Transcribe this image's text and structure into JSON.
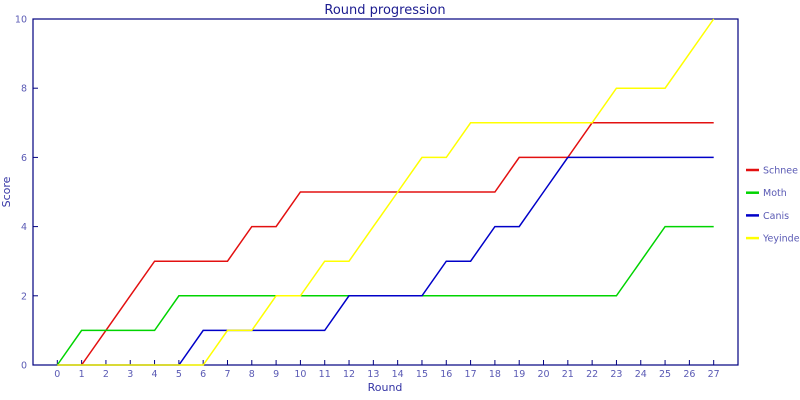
{
  "chart_data": {
    "type": "line",
    "title": "Round progression",
    "xlabel": "Round",
    "ylabel": "Score",
    "xlim": [
      -1,
      28
    ],
    "ylim": [
      0,
      10
    ],
    "x_ticks": [
      0,
      1,
      2,
      3,
      4,
      5,
      6,
      7,
      8,
      9,
      10,
      11,
      12,
      13,
      14,
      15,
      16,
      17,
      18,
      19,
      20,
      21,
      22,
      23,
      24,
      25,
      26,
      27
    ],
    "y_ticks": [
      0,
      2,
      4,
      6,
      8,
      10
    ],
    "grid": false,
    "legend_position": "right-outside",
    "x": [
      0,
      1,
      2,
      3,
      4,
      5,
      6,
      7,
      8,
      9,
      10,
      11,
      12,
      13,
      14,
      15,
      16,
      17,
      18,
      19,
      20,
      21,
      22,
      23,
      24,
      25,
      26,
      27
    ],
    "series": [
      {
        "name": "Schnee",
        "color": "#e31010",
        "values": [
          null,
          0,
          1,
          2,
          3,
          3,
          3,
          3,
          4,
          4,
          5,
          5,
          5,
          5,
          5,
          5,
          5,
          5,
          5,
          6,
          6,
          6,
          7,
          7,
          7,
          7,
          7,
          7
        ]
      },
      {
        "name": "Moth",
        "color": "#00d400",
        "values": [
          0,
          1,
          1,
          1,
          1,
          2,
          2,
          2,
          2,
          2,
          2,
          2,
          2,
          2,
          2,
          2,
          2,
          2,
          2,
          2,
          2,
          2,
          2,
          2,
          3,
          4,
          4,
          4
        ]
      },
      {
        "name": "Canis",
        "color": "#0000c8",
        "values": [
          0,
          0,
          0,
          0,
          0,
          0,
          1,
          1,
          1,
          1,
          1,
          1,
          2,
          2,
          2,
          2,
          3,
          3,
          4,
          4,
          5,
          6,
          6,
          6,
          6,
          6,
          6,
          6
        ]
      },
      {
        "name": "Yeyinde",
        "color": "#ffff00",
        "values": [
          0,
          0,
          0,
          0,
          0,
          0,
          0,
          1,
          1,
          2,
          2,
          3,
          3,
          4,
          5,
          6,
          6,
          7,
          7,
          7,
          7,
          7,
          7,
          8,
          8,
          8,
          9,
          10
        ]
      }
    ],
    "colors": {
      "axis": "#000080",
      "title": "#1b1b8f",
      "axis_label": "#3535a5",
      "tick_label": "#5a5ab4",
      "background": "#ffffff"
    }
  }
}
